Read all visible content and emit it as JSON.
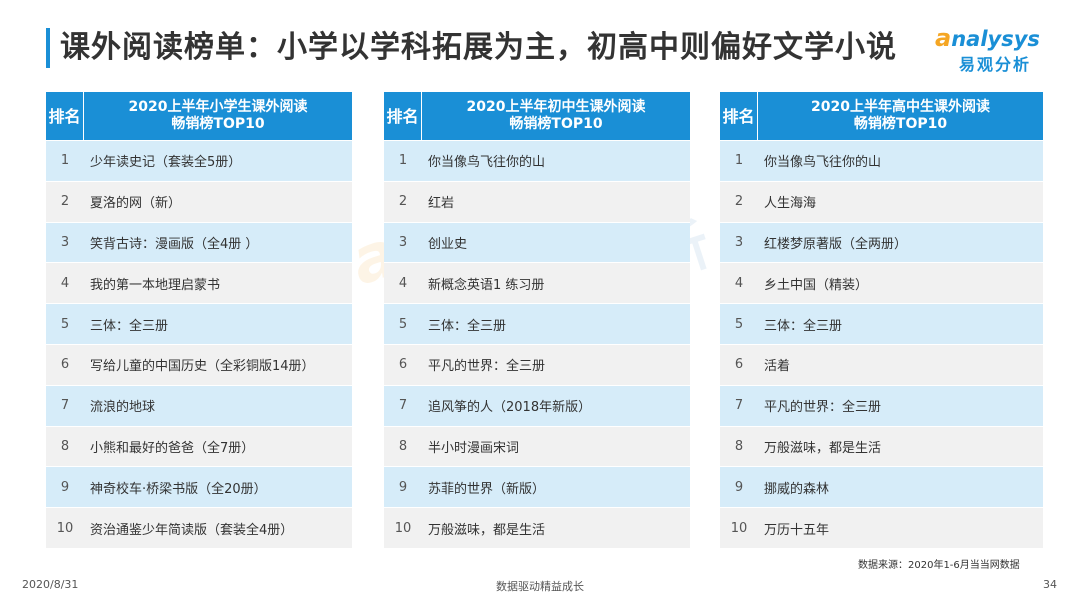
{
  "header": {
    "title": "课外阅读榜单：小学以学科拓展为主，初高中则偏好文学小说"
  },
  "logo": {
    "brand": "nalysys",
    "brand_mark": "a",
    "subtitle": "易观分析",
    "brand_color": "#1a8fd6",
    "mark_color": "#f5a623"
  },
  "watermark": {
    "brand": "nalysys",
    "brand_mark": "a",
    "subtitle": "易观分析"
  },
  "accent_color": "#1a8fd6",
  "tables": {
    "primary": {
      "rank_header": "排名",
      "title_line1": "2020上半年小学生课外阅读",
      "title_line2": "畅销榜TOP10",
      "rows": [
        {
          "rank": "1",
          "name": "少年读史记（套装全5册）"
        },
        {
          "rank": "2",
          "name": "夏洛的网（新）"
        },
        {
          "rank": "3",
          "name": "笑背古诗：漫画版（全4册 ）"
        },
        {
          "rank": "4",
          "name": "我的第一本地理启蒙书"
        },
        {
          "rank": "5",
          "name": "三体：全三册"
        },
        {
          "rank": "6",
          "name": "写给儿童的中国历史（全彩铜版14册）"
        },
        {
          "rank": "7",
          "name": "流浪的地球"
        },
        {
          "rank": "8",
          "name": "小熊和最好的爸爸（全7册）"
        },
        {
          "rank": "9",
          "name": "神奇校车·桥梁书版（全20册）"
        },
        {
          "rank": "10",
          "name": "资治通鉴少年简读版（套装全4册）"
        }
      ]
    },
    "junior": {
      "rank_header": "排名",
      "title_line1": "2020上半年初中生课外阅读",
      "title_line2": "畅销榜TOP10",
      "rows": [
        {
          "rank": "1",
          "name": "你当像鸟飞往你的山"
        },
        {
          "rank": "2",
          "name": "红岩"
        },
        {
          "rank": "3",
          "name": "创业史"
        },
        {
          "rank": "4",
          "name": "新概念英语1 练习册"
        },
        {
          "rank": "5",
          "name": "三体：全三册"
        },
        {
          "rank": "6",
          "name": "平凡的世界：全三册"
        },
        {
          "rank": "7",
          "name": "追风筝的人（2018年新版）"
        },
        {
          "rank": "8",
          "name": "半小时漫画宋词"
        },
        {
          "rank": "9",
          "name": "苏菲的世界（新版）"
        },
        {
          "rank": "10",
          "name": "万般滋味，都是生活"
        }
      ]
    },
    "senior": {
      "rank_header": "排名",
      "title_line1": "2020上半年高中生课外阅读",
      "title_line2": "畅销榜TOP10",
      "rows": [
        {
          "rank": "1",
          "name": "你当像鸟飞往你的山"
        },
        {
          "rank": "2",
          "name": "人生海海"
        },
        {
          "rank": "3",
          "name": "红楼梦原著版（全两册）"
        },
        {
          "rank": "4",
          "name": "乡土中国（精装）"
        },
        {
          "rank": "5",
          "name": "三体：全三册"
        },
        {
          "rank": "6",
          "name": "活着"
        },
        {
          "rank": "7",
          "name": "平凡的世界：全三册"
        },
        {
          "rank": "8",
          "name": "万般滋味，都是生活"
        },
        {
          "rank": "9",
          "name": "挪威的森林"
        },
        {
          "rank": "10",
          "name": "万历十五年"
        }
      ]
    }
  },
  "source": "数据来源：2020年1-6月当当网数据",
  "footer": {
    "date": "2020/8/31",
    "center": "数据驱动精益成长",
    "page": "34"
  }
}
